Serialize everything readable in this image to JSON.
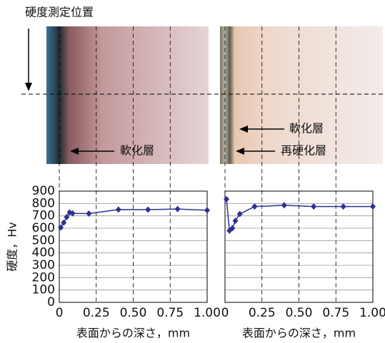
{
  "figure": {
    "position_label": "硬度測定位置",
    "left_image_labels": [
      "軟化層"
    ],
    "right_image_labels": [
      "軟化層",
      "再硬化層"
    ]
  },
  "chart_data": [
    {
      "type": "line",
      "ylabel": "硬度，Hv",
      "xlabel": "表面からの深さ，mm",
      "x": [
        0.01,
        0.03,
        0.05,
        0.07,
        0.09,
        0.2,
        0.4,
        0.6,
        0.8,
        1.0
      ],
      "values": [
        605,
        645,
        690,
        728,
        720,
        718,
        751,
        750,
        755,
        745
      ],
      "color": "#2e3192",
      "xlim": [
        0,
        1
      ],
      "ylim": [
        0,
        900
      ],
      "xticks": [
        0,
        0.25,
        {
          "value": 0.5,
          "label": "0.50"
        },
        0.75,
        {
          "value": 1,
          "label": "1.00"
        }
      ],
      "yticks": [
        0,
        100,
        200,
        300,
        400,
        500,
        600,
        700,
        800,
        900
      ],
      "grid": true,
      "show_ytick_labels": true
    },
    {
      "type": "line",
      "xlabel": "表面からの深さ，mm",
      "x": [
        0.01,
        0.03,
        0.05,
        0.07,
        0.1,
        0.2,
        0.4,
        0.6,
        0.8,
        1.0
      ],
      "values": [
        835,
        580,
        600,
        660,
        715,
        775,
        785,
        775,
        775,
        775
      ],
      "color": "#2e3192",
      "xlim": [
        0,
        1
      ],
      "ylim": [
        0,
        900
      ],
      "xticks": [
        0,
        0.25,
        {
          "value": 0.5,
          "label": "0.50"
        },
        0.75,
        {
          "value": 1,
          "label": "1.00"
        }
      ],
      "yticks": [
        0,
        100,
        200,
        300,
        400,
        500,
        600,
        700,
        800,
        900
      ],
      "grid": true,
      "show_ytick_labels": false
    }
  ]
}
